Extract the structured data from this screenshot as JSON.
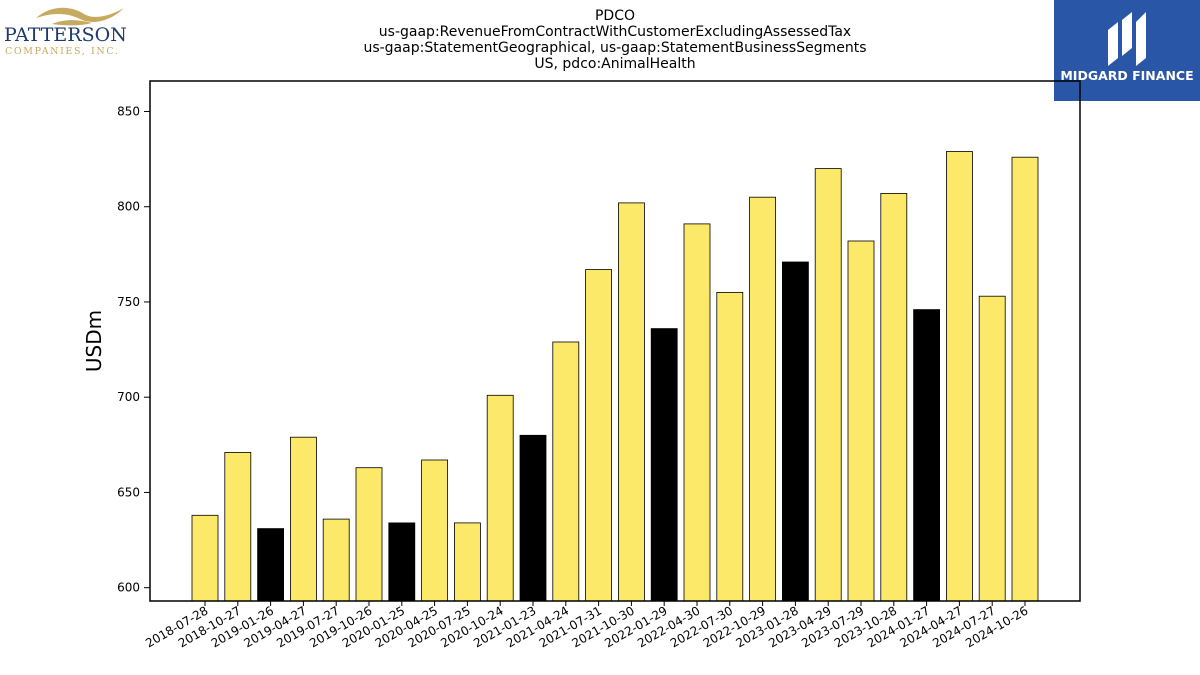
{
  "title": {
    "lines": [
      "PDCO",
      "us-gaap:RevenueFromContractWithCustomerExcludingAssessedTax",
      "us-gaap:StatementGeographical, us-gaap:StatementBusinessSegments",
      "US, pdco:AnimalHealth"
    ]
  },
  "logos": {
    "left": {
      "name": "PATTERSON",
      "sub": "COMPANIES, INC.",
      "color": "#1f3a6b",
      "accent": "#c6ab5e"
    },
    "right": {
      "name": "MIDGARD FINANCE",
      "background": "#2a56a8"
    }
  },
  "chart_data": {
    "type": "bar",
    "ylabel": "USDm",
    "xlabel": "",
    "ylim": [
      593,
      866
    ],
    "yticks": [
      600,
      650,
      700,
      750,
      800,
      850
    ],
    "grid": false,
    "colors": {
      "default": "#fce96a",
      "highlight": "#000000",
      "edge": "#000000"
    },
    "categories": [
      "2018-07-28",
      "2018-10-27",
      "2019-01-26",
      "2019-04-27",
      "2019-07-27",
      "2019-10-26",
      "2020-01-25",
      "2020-04-25",
      "2020-07-25",
      "2020-10-24",
      "2021-01-23",
      "2021-04-24",
      "2021-07-31",
      "2021-10-30",
      "2022-01-29",
      "2022-04-30",
      "2022-07-30",
      "2022-10-29",
      "2023-01-28",
      "2023-04-29",
      "2023-07-29",
      "2023-10-28",
      "2024-01-27",
      "2024-04-27",
      "2024-07-27",
      "2024-10-26"
    ],
    "values": [
      638,
      671,
      631,
      679,
      636,
      663,
      634,
      667,
      634,
      701,
      680,
      729,
      767,
      802,
      736,
      791,
      755,
      805,
      771,
      820,
      782,
      807,
      746,
      829,
      753,
      826
    ],
    "highlighted": [
      false,
      false,
      true,
      false,
      false,
      false,
      true,
      false,
      false,
      false,
      true,
      false,
      false,
      false,
      true,
      false,
      false,
      false,
      true,
      false,
      false,
      false,
      true,
      false,
      false,
      false
    ]
  }
}
